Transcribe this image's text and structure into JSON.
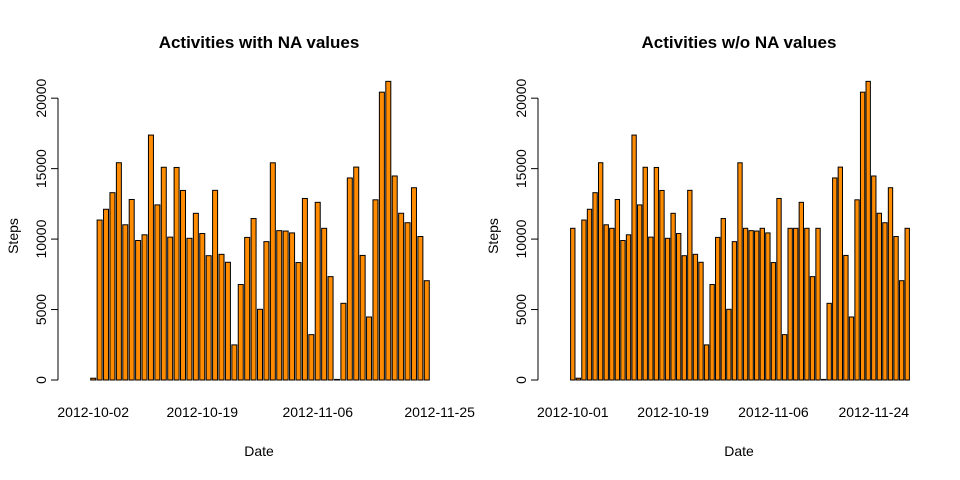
{
  "chart_data": [
    {
      "type": "bar",
      "title": "Activities with NA values",
      "xlabel": "Date",
      "ylabel": "Steps",
      "ylim": [
        0,
        22000
      ],
      "yticks": [
        0,
        5000,
        10000,
        15000,
        20000
      ],
      "xtick_labels": [
        "2012-10-02",
        "2012-10-19",
        "2012-11-06",
        "2012-11-25"
      ],
      "x_first": "2012-10-02",
      "x_last": "2012-11-29",
      "bar_color": "#FF8C00",
      "values": [
        126,
        11352,
        12116,
        13294,
        15420,
        11015,
        12811,
        9900,
        10304,
        17382,
        12426,
        15098,
        10139,
        15084,
        13452,
        10056,
        11829,
        10395,
        8821,
        13460,
        8918,
        8355,
        2492,
        6778,
        10119,
        11458,
        5018,
        9819,
        15414,
        10600,
        10571,
        10439,
        8334,
        12883,
        3219,
        12608,
        10765,
        7336,
        41,
        5441,
        14339,
        15110,
        8841,
        4472,
        12787,
        20427,
        21194,
        14478,
        11834,
        11162,
        13646,
        10183,
        7047
      ]
    },
    {
      "type": "bar",
      "title": "Activities w/o NA values",
      "xlabel": "Date",
      "ylabel": "Steps",
      "ylim": [
        0,
        22000
      ],
      "yticks": [
        0,
        5000,
        10000,
        15000,
        20000
      ],
      "xtick_labels": [
        "2012-10-01",
        "2012-10-19",
        "2012-11-06",
        "2012-11-24"
      ],
      "x_first": "2012-10-01",
      "x_last": "2012-11-30",
      "bar_color": "#FF8C00",
      "values": [
        10766,
        126,
        11352,
        12116,
        13294,
        15420,
        11015,
        10766,
        12811,
        9900,
        10304,
        17382,
        12426,
        15098,
        10139,
        15084,
        13452,
        10056,
        11829,
        10395,
        8821,
        13460,
        8918,
        8355,
        2492,
        6778,
        10119,
        11458,
        5018,
        9819,
        15414,
        10766,
        10600,
        10571,
        10766,
        10439,
        8334,
        12883,
        3219,
        10766,
        10766,
        12608,
        10765,
        7336,
        10766,
        41,
        5441,
        14339,
        15110,
        8841,
        4472,
        12787,
        20427,
        21194,
        14478,
        11834,
        11162,
        13646,
        10183,
        7047,
        10766
      ]
    }
  ]
}
